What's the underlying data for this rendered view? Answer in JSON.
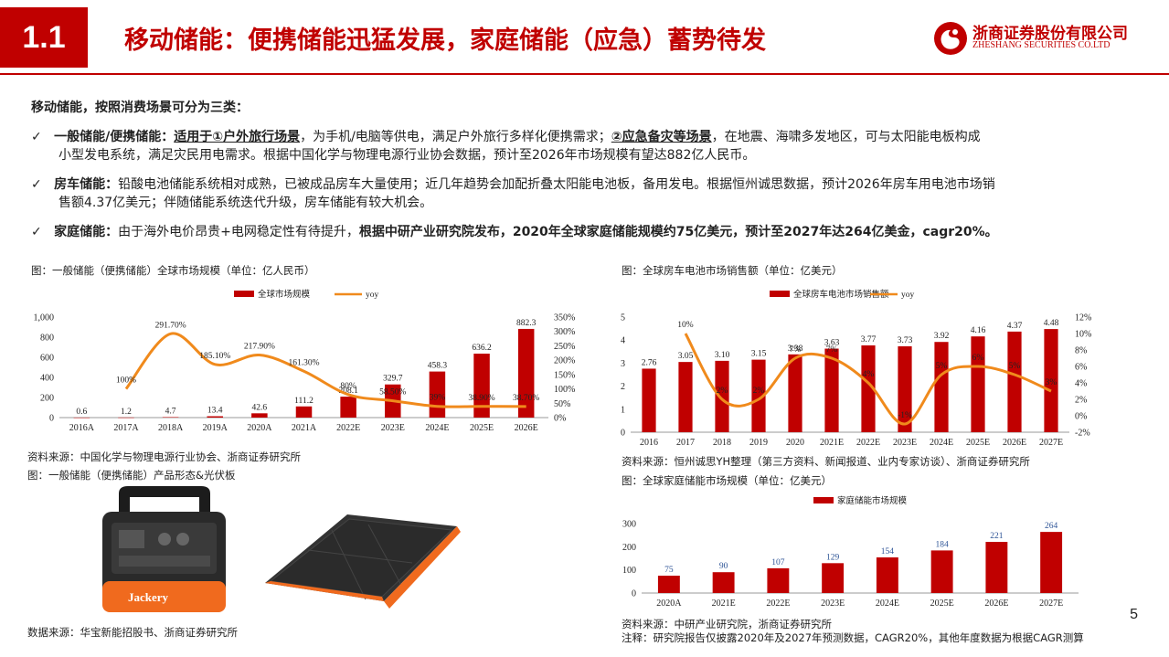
{
  "header": {
    "section": "1.1",
    "title": "移动储能：便携储能迅猛发展，家庭储能（应急）蓄势待发",
    "logo_cn": "浙商证券股份有限公司",
    "logo_en": "ZHESHANG SECURITIES CO.LTD"
  },
  "intro": "移动储能，按照消费场景可分为三类：",
  "bullets": [
    {
      "label": "一般储能/便携储能",
      "colon": "：",
      "u1": "适用于①户外旅行场景",
      "t1": "，为手机/电脑等供电，满足户外旅行多样化便携需求；",
      "u2": "②应急备灾等场景",
      "t2": "，在地震、海啸多发地区，可与太阳能电板构成",
      "line2": "小型发电系统，满足灾民用电需求。根据中国化学与物理电源行业协会数据，预计至2026年市场规模有望达882亿人民币。"
    },
    {
      "label": "房车储能",
      "colon": "：",
      "t1": "铅酸电池储能系统相对成熟，已被成品房车大量使用；近几年趋势会加配折叠太阳能电池板，备用发电。根据恒州诚思数据，预计2026年房车用电池市场销",
      "line2": "售额4.37亿美元；伴随储能系统迭代升级，房车储能有较大机会。"
    },
    {
      "label": "家庭储能",
      "colon": "：",
      "t1": "由于海外电价昂贵+电网稳定性有待提升，",
      "bold1": "根据中研产业研究院发布，2020年全球家庭储能规模约75亿美元，预计至2027年达264亿美金，cagr20%。"
    }
  ],
  "figures": {
    "fig1_caption": "图：一般储能（便携储能）全球市场规模（单位：亿人民币）",
    "fig1_source": "资料来源：中国化学与物理电源行业协会、浙商证券研究所",
    "fig2_caption": "图：一般储能（便携储能）产品形态&光伏板",
    "fig2_source": "数据来源：华宝新能招股书、浙商证券研究所",
    "fig3_caption": "图：全球房车电池市场销售额（单位：亿美元）",
    "fig3_source": "资料来源：恒州诚思YH整理（第三方资料、新闻报道、业内专家访谈）、浙商证券研究所",
    "fig4_caption": "图：全球家庭储能市场规模（单位：亿美元）",
    "fig4_source": "资料来源：中研产业研究院，浙商证券研究所",
    "fig4_note": "注释：研究院报告仅披露2020年及2027年预测数据，CAGR20%，其他年度数据为根据CAGR测算",
    "product_brand": "Jackery"
  },
  "page_number": "5",
  "colors": {
    "brand": "#c00000",
    "bar": "#c00000",
    "line": "#f08a1c",
    "label_blue": "#2f5597"
  },
  "chart_data": [
    {
      "type": "bar",
      "categories": [
        "2016A",
        "2017A",
        "2018A",
        "2019A",
        "2020A",
        "2021A",
        "2022E",
        "2023E",
        "2024E",
        "2025E",
        "2026E"
      ],
      "series": [
        {
          "name": "全球市场规模",
          "values": [
            0.6,
            1.2,
            4.7,
            13.4,
            42.6,
            111.2,
            208.1,
            329.7,
            458.3,
            636.2,
            882.3
          ],
          "labels": [
            "0.6",
            "1.2",
            "4.7",
            "13.4",
            "42.6",
            "111.2",
            "208.1",
            "329.7",
            "458.3",
            "636.2",
            "882.3"
          ]
        },
        {
          "name": "yoy",
          "type": "line",
          "axis": "right",
          "values": [
            null,
            100,
            291.7,
            185.1,
            217.9,
            161.3,
            80,
            58.5,
            39,
            38.9,
            38.7
          ],
          "labels": [
            "",
            "100%",
            "291.70%",
            "185.10%",
            "217.90%",
            "161.30%",
            "80%",
            "58.50%",
            "39%",
            "38.90%",
            "38.70%"
          ]
        }
      ],
      "ylim": [
        0,
        1000
      ],
      "yticks": [
        "0",
        "200",
        "400",
        "600",
        "800",
        "1,000"
      ],
      "y2lim": [
        0,
        350
      ],
      "y2ticks": [
        "0%",
        "50%",
        "100%",
        "150%",
        "200%",
        "250%",
        "300%",
        "350%"
      ],
      "legend": "top-center"
    },
    {
      "type": "bar",
      "categories": [
        "2016",
        "2017",
        "2018",
        "2019",
        "2020",
        "2021E",
        "2022E",
        "2023E",
        "2024E",
        "2025E",
        "2026E",
        "2027E"
      ],
      "series": [
        {
          "name": "全球房车电池市场销售额",
          "values": [
            2.76,
            3.05,
            3.1,
            3.15,
            3.38,
            3.63,
            3.77,
            3.73,
            3.92,
            4.16,
            4.37,
            4.48
          ],
          "labels": [
            "2.76",
            "3.05",
            "3.10",
            "3.15",
            "3.38",
            "3.63",
            "3.77",
            "3.73",
            "3.92",
            "4.16",
            "4.37",
            "4.48"
          ]
        },
        {
          "name": "yoy",
          "type": "line",
          "axis": "right",
          "values": [
            null,
            10,
            2,
            2,
            7,
            7,
            4,
            -1,
            5,
            6,
            5,
            3
          ],
          "labels": [
            "",
            "10%",
            "2%",
            "2%",
            "7%",
            "7%",
            "4%",
            "-1%",
            "5%",
            "6%",
            "5%",
            "3%"
          ]
        }
      ],
      "ylim": [
        0,
        5
      ],
      "yticks": [
        "0",
        "1",
        "2",
        "3",
        "4",
        "5"
      ],
      "y2lim": [
        -2,
        12
      ],
      "y2ticks": [
        "-2%",
        "0%",
        "2%",
        "4%",
        "6%",
        "8%",
        "10%",
        "12%"
      ],
      "legend": "top-center"
    },
    {
      "type": "bar",
      "categories": [
        "2020A",
        "2021E",
        "2022E",
        "2023E",
        "2024E",
        "2025E",
        "2026E",
        "2027E"
      ],
      "series": [
        {
          "name": "家庭储能市场规模",
          "values": [
            75,
            90,
            107,
            129,
            154,
            184,
            221,
            264
          ],
          "labels": [
            "75",
            "90",
            "107",
            "129",
            "154",
            "184",
            "221",
            "264"
          ]
        }
      ],
      "ylim": [
        0,
        300
      ],
      "yticks": [
        "0",
        "100",
        "200",
        "300"
      ],
      "legend": "top-center"
    }
  ]
}
